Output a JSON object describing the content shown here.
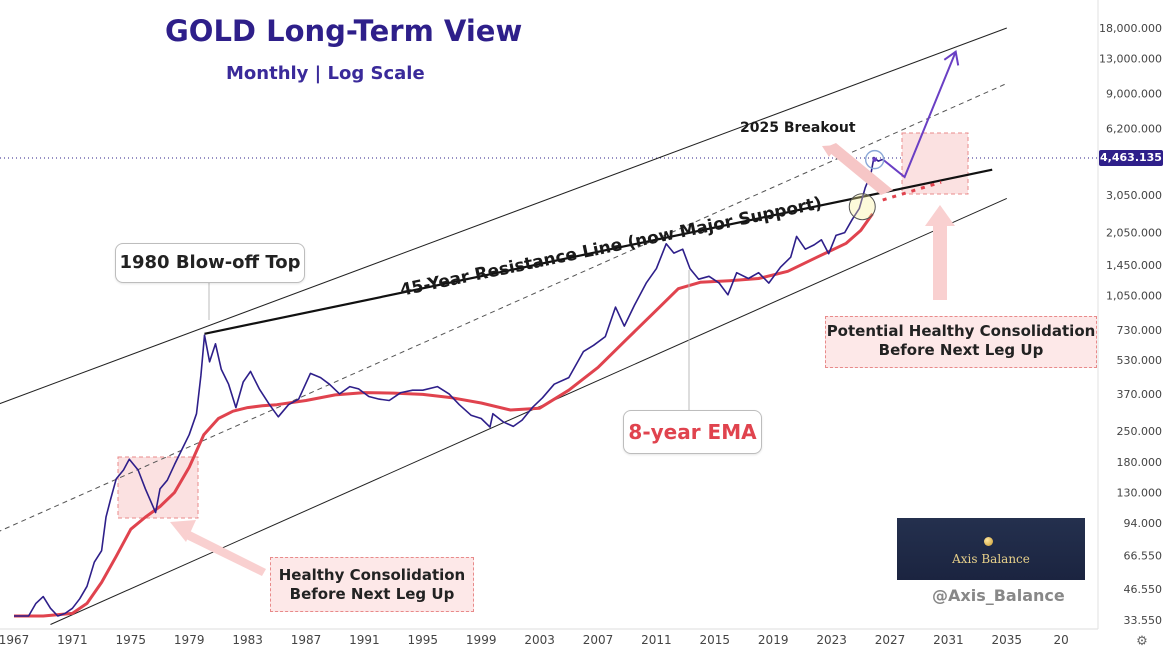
{
  "header": {
    "title": "GOLD Long-Term View",
    "subtitle": "Monthly | Log Scale"
  },
  "annotations": {
    "resistance_line": "45-Year Resistance Line (now Major Support)",
    "blowoff_top": "1980 Blow-off Top",
    "breakout": "2025 Breakout",
    "ema_label": "8-year EMA",
    "consolidation_1975_line1": "Healthy Consolidation",
    "consolidation_1975_line2": "Before Next Leg Up",
    "consolidation_future_line1": "Potential Healthy Consolidation",
    "consolidation_future_line2": "Before Next Leg Up"
  },
  "watermark": {
    "brand": "Axis Balance",
    "handle": "@Axis_Balance"
  },
  "colors": {
    "price_line": "#2e1f8a",
    "ema_line": "#e0434e",
    "resistance_line": "#111111",
    "channel_line": "#222222",
    "pink_box": "#fde8e8",
    "projection": "#6a3fc4",
    "price_badge": "#2e1f8a"
  },
  "chart_data": {
    "type": "line",
    "scale": "log",
    "x_ticks": [
      "1967",
      "1971",
      "1975",
      "1979",
      "1983",
      "1987",
      "1991",
      "1995",
      "1999",
      "2003",
      "2007",
      "2011",
      "2015",
      "2019",
      "2023",
      "2027",
      "2031",
      "2035",
      "20"
    ],
    "y_ticks": [
      "18,000.000",
      "13,000.000",
      "9,000.000",
      "6,200.000",
      "3,050.000",
      "2,050.000",
      "1,450.000",
      "1,050.000",
      "730.000",
      "530.000",
      "370.000",
      "250.000",
      "180.000",
      "130.000",
      "94.000",
      "66.550",
      "46.550",
      "33.550"
    ],
    "y_tick_values": [
      18000,
      13000,
      9000,
      6200,
      3050,
      2050,
      1450,
      1050,
      730,
      530,
      370,
      250,
      180,
      130,
      94,
      66.55,
      46.55,
      33.55
    ],
    "last_price_label": "4,463.135",
    "last_price": 4463.135,
    "series": [
      {
        "name": "",
        "points": [
          [
            1967.0,
            35
          ],
          [
            1968.0,
            35
          ],
          [
            1968.5,
            40
          ],
          [
            1969.0,
            43
          ],
          [
            1969.5,
            38
          ],
          [
            1970.0,
            35
          ],
          [
            1970.5,
            36
          ],
          [
            1971.0,
            38
          ],
          [
            1971.5,
            42
          ],
          [
            1972.0,
            48
          ],
          [
            1972.5,
            62
          ],
          [
            1973.0,
            70
          ],
          [
            1973.3,
            100
          ],
          [
            1973.6,
            120
          ],
          [
            1974.0,
            150
          ],
          [
            1974.5,
            165
          ],
          [
            1974.9,
            185
          ],
          [
            1975.5,
            165
          ],
          [
            1976.0,
            135
          ],
          [
            1976.7,
            105
          ],
          [
            1977.0,
            135
          ],
          [
            1977.5,
            148
          ],
          [
            1978.0,
            175
          ],
          [
            1978.5,
            205
          ],
          [
            1979.0,
            240
          ],
          [
            1979.5,
            300
          ],
          [
            1979.8,
            450
          ],
          [
            1980.05,
            690
          ],
          [
            1980.4,
            520
          ],
          [
            1980.8,
            630
          ],
          [
            1981.2,
            480
          ],
          [
            1981.7,
            410
          ],
          [
            1982.2,
            320
          ],
          [
            1982.7,
            420
          ],
          [
            1983.2,
            470
          ],
          [
            1983.8,
            390
          ],
          [
            1984.5,
            330
          ],
          [
            1985.1,
            290
          ],
          [
            1985.8,
            330
          ],
          [
            1986.5,
            350
          ],
          [
            1987.3,
            460
          ],
          [
            1988.0,
            440
          ],
          [
            1988.6,
            410
          ],
          [
            1989.3,
            370
          ],
          [
            1990.0,
            400
          ],
          [
            1990.6,
            390
          ],
          [
            1991.3,
            360
          ],
          [
            1992.0,
            350
          ],
          [
            1992.7,
            345
          ],
          [
            1993.5,
            375
          ],
          [
            1994.3,
            385
          ],
          [
            1995.0,
            385
          ],
          [
            1996.0,
            400
          ],
          [
            1996.8,
            370
          ],
          [
            1997.5,
            330
          ],
          [
            1998.3,
            295
          ],
          [
            1999.0,
            285
          ],
          [
            1999.6,
            260
          ],
          [
            1999.8,
            300
          ],
          [
            2000.5,
            275
          ],
          [
            2001.2,
            262
          ],
          [
            2001.8,
            280
          ],
          [
            2002.5,
            320
          ],
          [
            2003.2,
            355
          ],
          [
            2004.0,
            410
          ],
          [
            2005.0,
            440
          ],
          [
            2006.0,
            580
          ],
          [
            2006.7,
            620
          ],
          [
            2007.5,
            680
          ],
          [
            2008.2,
            930
          ],
          [
            2008.8,
            760
          ],
          [
            2009.5,
            950
          ],
          [
            2010.3,
            1200
          ],
          [
            2011.0,
            1400
          ],
          [
            2011.67,
            1820
          ],
          [
            2012.2,
            1650
          ],
          [
            2012.8,
            1720
          ],
          [
            2013.3,
            1400
          ],
          [
            2013.9,
            1250
          ],
          [
            2014.6,
            1290
          ],
          [
            2015.3,
            1200
          ],
          [
            2015.9,
            1060
          ],
          [
            2016.5,
            1340
          ],
          [
            2017.3,
            1260
          ],
          [
            2018.0,
            1340
          ],
          [
            2018.7,
            1200
          ],
          [
            2019.5,
            1420
          ],
          [
            2020.2,
            1580
          ],
          [
            2020.6,
            1970
          ],
          [
            2021.2,
            1720
          ],
          [
            2021.8,
            1800
          ],
          [
            2022.3,
            1900
          ],
          [
            2022.8,
            1640
          ],
          [
            2023.3,
            1990
          ],
          [
            2023.9,
            2050
          ],
          [
            2024.4,
            2350
          ],
          [
            2024.9,
            2650
          ],
          [
            2025.3,
            3300
          ],
          [
            2025.7,
            3850
          ],
          [
            2025.9,
            4550
          ],
          [
            2026.2,
            4380
          ],
          [
            2026.5,
            4463
          ]
        ]
      },
      {
        "name": "8-year EMA",
        "points": [
          [
            1967.0,
            35
          ],
          [
            1969.0,
            35
          ],
          [
            1971.0,
            36
          ],
          [
            1972.0,
            40
          ],
          [
            1973.0,
            50
          ],
          [
            1974.0,
            66
          ],
          [
            1975.0,
            88
          ],
          [
            1976.0,
            100
          ],
          [
            1977.0,
            112
          ],
          [
            1978.0,
            130
          ],
          [
            1979.0,
            170
          ],
          [
            1980.0,
            240
          ],
          [
            1981.0,
            285
          ],
          [
            1982.0,
            308
          ],
          [
            1983.0,
            320
          ],
          [
            1984.0,
            326
          ],
          [
            1985.0,
            330
          ],
          [
            1987.0,
            345
          ],
          [
            1989.0,
            366
          ],
          [
            1991.0,
            375
          ],
          [
            1993.0,
            373
          ],
          [
            1995.0,
            368
          ],
          [
            1997.0,
            355
          ],
          [
            1999.0,
            336
          ],
          [
            2001.0,
            312
          ],
          [
            2003.0,
            318
          ],
          [
            2005.0,
            385
          ],
          [
            2007.0,
            490
          ],
          [
            2009.0,
            665
          ],
          [
            2011.0,
            900
          ],
          [
            2012.5,
            1130
          ],
          [
            2014.0,
            1210
          ],
          [
            2016.0,
            1230
          ],
          [
            2018.0,
            1260
          ],
          [
            2020.0,
            1360
          ],
          [
            2022.0,
            1580
          ],
          [
            2024.0,
            1830
          ],
          [
            2025.0,
            2100
          ],
          [
            2025.8,
            2500
          ]
        ]
      }
    ],
    "projection": {
      "path": [
        [
          2026.5,
          4463
        ],
        [
          2028.0,
          3700
        ],
        [
          2031.5,
          14000
        ]
      ],
      "dashed_support_ext": [
        [
          2026.5,
          2900
        ],
        [
          2030.5,
          3500
        ]
      ]
    },
    "resistance_line": [
      [
        1980.05,
        700
      ],
      [
        2034.0,
        4000
      ]
    ],
    "channel_upper": [
      [
        1963.0,
        280
      ],
      [
        2035.0,
        18000
      ]
    ],
    "channel_mid": [
      [
        1963.0,
        70
      ],
      [
        2035.0,
        10000
      ]
    ],
    "channel_lower": [
      [
        1969.5,
        32
      ],
      [
        2035.0,
        2950
      ]
    ]
  }
}
